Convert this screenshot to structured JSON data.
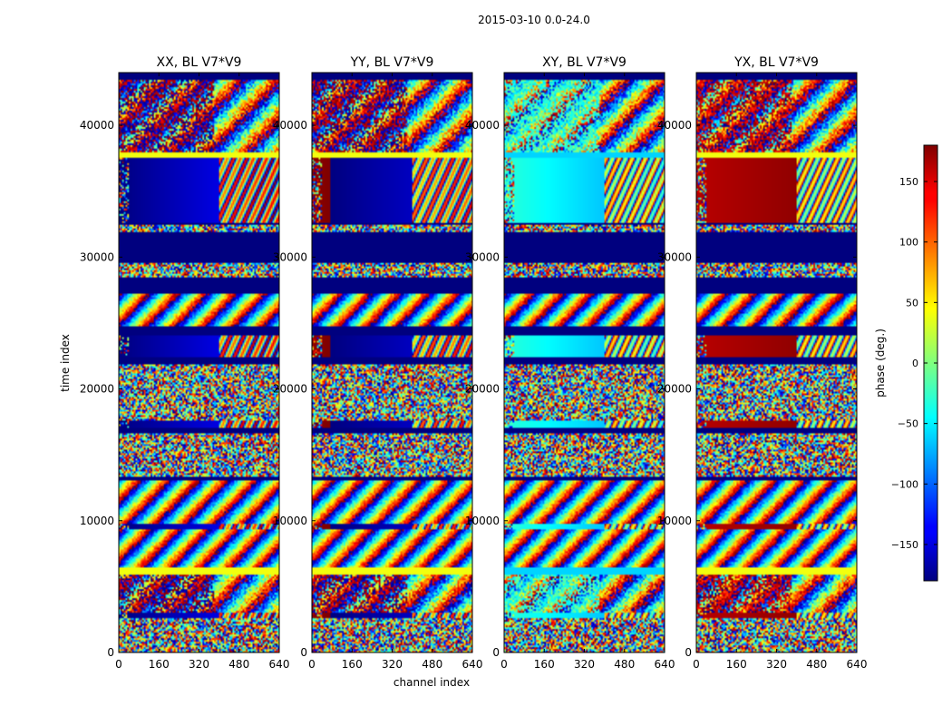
{
  "suptitle": "2015-03-10 0.0-24.0",
  "chart_data": {
    "type": "heatmap",
    "ylabel": "time index",
    "xlabel": "channel index",
    "xlim": [
      0,
      640
    ],
    "ylim": [
      0,
      44000
    ],
    "x_ticks": [
      0,
      160,
      320,
      480,
      640
    ],
    "y_ticks": [
      0,
      10000,
      20000,
      30000,
      40000
    ],
    "panels": [
      {
        "title": "XX, BL V7*V9",
        "base_phase": 180,
        "phase_slope": 0.25
      },
      {
        "title": "YY, BL V7*V9",
        "base_phase": 175,
        "phase_slope": 0.2
      },
      {
        "title": "XY, BL V7*V9",
        "base_phase": -30,
        "phase_slope": -0.25
      },
      {
        "title": "YX, BL V7*V9",
        "base_phase": 160,
        "phase_slope": 0.1
      }
    ],
    "colorbar": {
      "label": "phase (deg.)",
      "range": [
        -180,
        180
      ],
      "ticks": [
        150,
        100,
        50,
        0,
        -50,
        -100,
        -150
      ],
      "colormap": "jet"
    },
    "bands": [
      {
        "y0": 43400,
        "y1": 44000,
        "kind": "empty"
      },
      {
        "y0": 40700,
        "y1": 43400,
        "kind": "mixed"
      },
      {
        "y0": 38000,
        "y1": 40700,
        "kind": "mixed"
      },
      {
        "y0": 37500,
        "y1": 38000,
        "kind": "light"
      },
      {
        "y0": 32600,
        "y1": 37500,
        "kind": "smooth"
      },
      {
        "y0": 32400,
        "y1": 32600,
        "kind": "empty"
      },
      {
        "y0": 31900,
        "y1": 32400,
        "kind": "noise"
      },
      {
        "y0": 29600,
        "y1": 31900,
        "kind": "empty"
      },
      {
        "y0": 28400,
        "y1": 29600,
        "kind": "noise"
      },
      {
        "y0": 27200,
        "y1": 28400,
        "kind": "empty"
      },
      {
        "y0": 24700,
        "y1": 27200,
        "kind": "fringe"
      },
      {
        "y0": 24000,
        "y1": 24700,
        "kind": "empty"
      },
      {
        "y0": 22400,
        "y1": 24000,
        "kind": "smooth"
      },
      {
        "y0": 21800,
        "y1": 22400,
        "kind": "empty"
      },
      {
        "y0": 17600,
        "y1": 21800,
        "kind": "noise"
      },
      {
        "y0": 17000,
        "y1": 17600,
        "kind": "smooth"
      },
      {
        "y0": 16600,
        "y1": 17000,
        "kind": "empty"
      },
      {
        "y0": 13300,
        "y1": 16600,
        "kind": "noise"
      },
      {
        "y0": 13100,
        "y1": 13300,
        "kind": "empty"
      },
      {
        "y0": 9800,
        "y1": 13100,
        "kind": "fringe"
      },
      {
        "y0": 9400,
        "y1": 9800,
        "kind": "smooth"
      },
      {
        "y0": 6400,
        "y1": 9400,
        "kind": "fringe"
      },
      {
        "y0": 5900,
        "y1": 6400,
        "kind": "light"
      },
      {
        "y0": 3000,
        "y1": 5900,
        "kind": "mixed"
      },
      {
        "y0": 2600,
        "y1": 3000,
        "kind": "smooth"
      },
      {
        "y0": 0,
        "y1": 2600,
        "kind": "noise"
      }
    ],
    "colors": {
      "background": "#ffffff",
      "empty": "#00007f"
    }
  }
}
